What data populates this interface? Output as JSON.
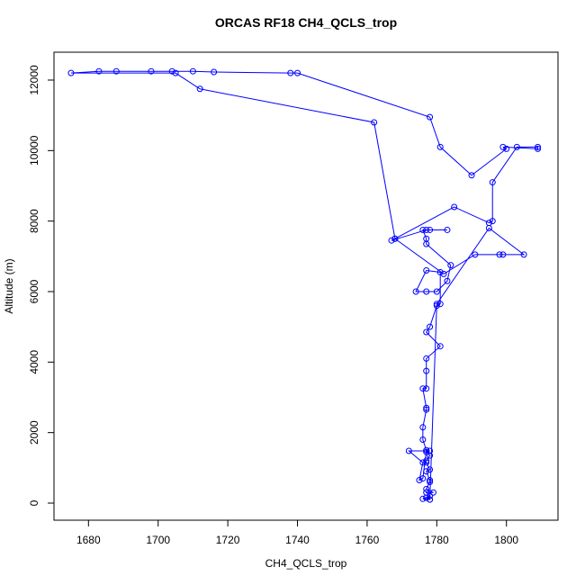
{
  "chart_data": {
    "type": "line",
    "title": "ORCAS RF18 CH4_QCLS_trop",
    "x_label": "CH4_QCLS_trop",
    "y_label": "Altitude (m)",
    "color": "blue",
    "markers": true,
    "x": [
      1777,
      1778,
      1776,
      1778,
      1777,
      1779,
      1777,
      1778,
      1778,
      1777,
      1778,
      1777,
      1777,
      1778,
      1777,
      1778,
      1772,
      1776,
      1775,
      1776,
      1777,
      1776,
      1776,
      1777,
      1777,
      1776,
      1777,
      1777,
      1777,
      1781,
      1777,
      1778,
      1780,
      1781,
      1781,
      1777,
      1774,
      1777,
      1780,
      1783,
      1784,
      1777,
      1777,
      1776,
      1778,
      1783,
      1777,
      1767,
      1768,
      1785,
      1795,
      1796,
      1796,
      1803,
      1809,
      1809,
      1799,
      1800,
      1790,
      1781,
      1778,
      1740,
      1738,
      1716,
      1710,
      1704,
      1698,
      1688,
      1683,
      1675,
      1705,
      1712,
      1762,
      1768,
      1782,
      1791,
      1798,
      1799,
      1805,
      1795,
      1780,
      1778
    ],
    "values": [
      150,
      100,
      120,
      200,
      300,
      300,
      400,
      600,
      650,
      900,
      950,
      1150,
      1200,
      1350,
      1450,
      1480,
      1480,
      1150,
      650,
      700,
      1500,
      1800,
      2150,
      2650,
      2700,
      3250,
      3250,
      3750,
      4100,
      4450,
      4850,
      5000,
      5600,
      5650,
      6550,
      6600,
      6000,
      6000,
      6000,
      6300,
      6750,
      7350,
      7500,
      7750,
      7750,
      7750,
      7750,
      7450,
      7500,
      8400,
      7950,
      8000,
      9100,
      10100,
      10100,
      10050,
      10100,
      10050,
      9300,
      10100,
      10950,
      12200,
      12200,
      12230,
      12250,
      12250,
      12250,
      12250,
      12250,
      12200,
      12200,
      11750,
      10800,
      7500,
      6500,
      7050,
      7050,
      7050,
      7050,
      7800,
      5650,
      100
    ],
    "xlim": [
      1670.1,
      1814.8
    ],
    "ylim": [
      -485,
      12791
    ],
    "xticks": [
      1680,
      1700,
      1720,
      1740,
      1760,
      1780,
      1800
    ],
    "yticks": [
      0,
      2000,
      4000,
      6000,
      8000,
      10000,
      12000
    ]
  }
}
